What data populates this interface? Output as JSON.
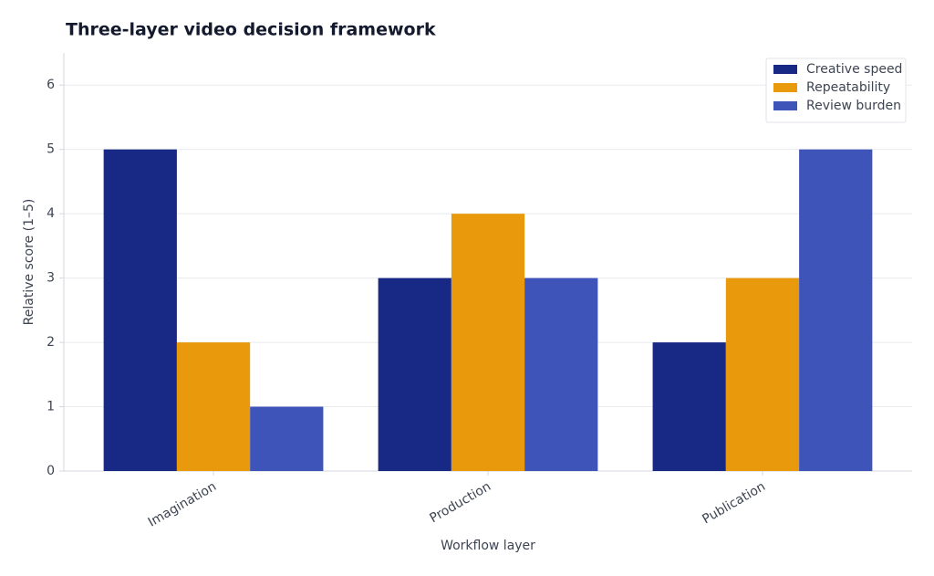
{
  "chart_data": {
    "type": "bar",
    "title": "Three-layer video decision framework",
    "x_label": "Workflow layer",
    "y_label": "Relative score (1–5)",
    "categories": [
      "Imagination",
      "Production",
      "Publication"
    ],
    "series": [
      {
        "name": "Creative speed",
        "color": "#172984",
        "values": [
          5,
          3,
          2
        ]
      },
      {
        "name": "Repeatability",
        "color": "#e99a0c",
        "values": [
          2,
          4,
          3
        ]
      },
      {
        "name": "Review burden",
        "color": "#3f54b8",
        "values": [
          1,
          3,
          5
        ]
      }
    ],
    "ylim": [
      0,
      6.5
    ],
    "yticks": [
      0,
      1,
      2,
      3,
      4,
      5,
      6
    ],
    "grid": true,
    "legend": "upper right"
  }
}
